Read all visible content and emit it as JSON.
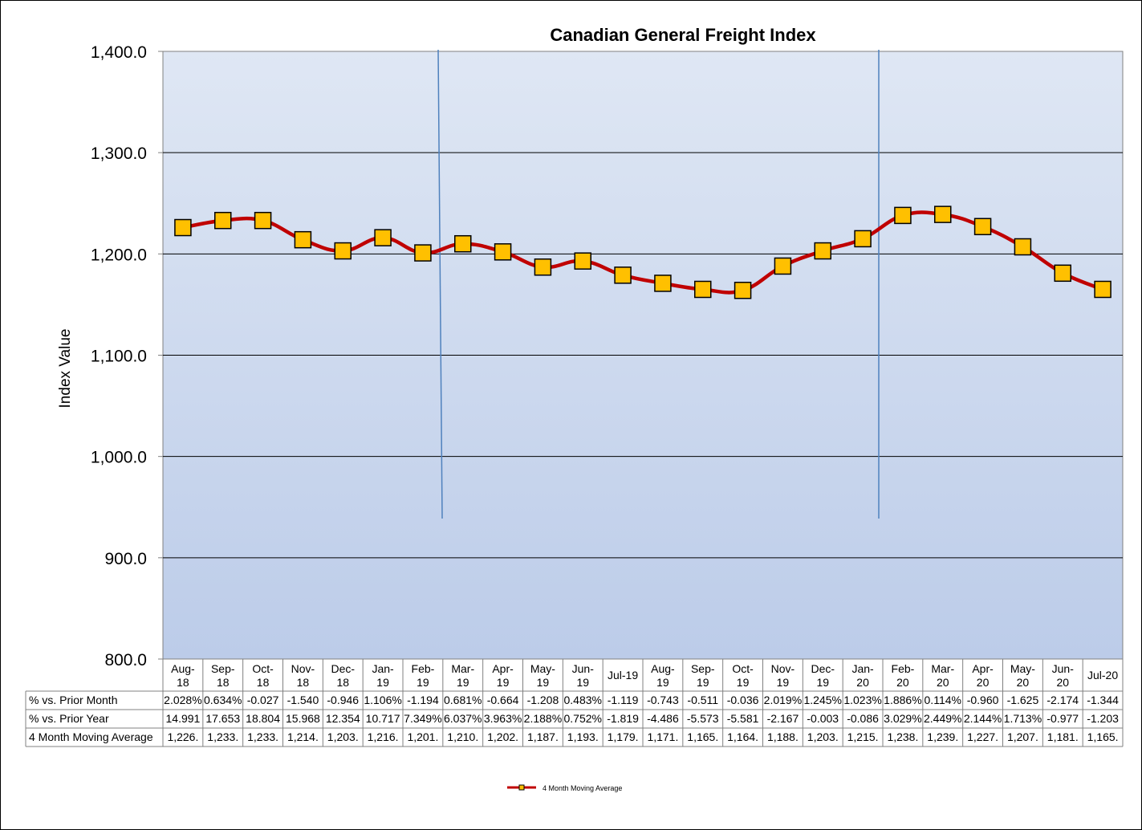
{
  "chart_data": {
    "type": "line",
    "title": "Canadian General Freight Index",
    "ylabel": "Index Value",
    "xlabel": "",
    "ylim": [
      800,
      1400
    ],
    "yticks": [
      "1,400.0",
      "1,300.0",
      "1,200.0",
      "1,100.0",
      "1,000.0",
      "900.0",
      "800.0"
    ],
    "ytick_values": [
      1400,
      1300,
      1200,
      1100,
      1000,
      900,
      800
    ],
    "grid": true,
    "legend_position": "bottom",
    "categories": [
      [
        "Aug-",
        "18"
      ],
      [
        "Sep-",
        "18"
      ],
      [
        "Oct-",
        "18"
      ],
      [
        "Nov-",
        "18"
      ],
      [
        "Dec-",
        "18"
      ],
      [
        "Jan-",
        "19"
      ],
      [
        "Feb-",
        "19"
      ],
      [
        "Mar-",
        "19"
      ],
      [
        "Apr-",
        "19"
      ],
      [
        "May-",
        "19"
      ],
      [
        "Jun-",
        "19"
      ],
      [
        "Jul-19"
      ],
      [
        "Aug-",
        "19"
      ],
      [
        "Sep-",
        "19"
      ],
      [
        "Oct-",
        "19"
      ],
      [
        "Nov-",
        "19"
      ],
      [
        "Dec-",
        "19"
      ],
      [
        "Jan-",
        "20"
      ],
      [
        "Feb-",
        "20"
      ],
      [
        "Mar-",
        "20"
      ],
      [
        "Apr-",
        "20"
      ],
      [
        "May-",
        "20"
      ],
      [
        "Jun-",
        "20"
      ],
      [
        "Jul-20"
      ]
    ],
    "series": [
      {
        "name": "4 Month Moving Average",
        "color": "#c00000",
        "marker_color": "#ffc000",
        "values": [
          1226,
          1233,
          1233,
          1214,
          1203,
          1216,
          1201,
          1210,
          1202,
          1187,
          1193,
          1179,
          1171,
          1165,
          1164,
          1188,
          1203,
          1215,
          1238,
          1239,
          1227,
          1207,
          1181,
          1165
        ]
      }
    ],
    "reference_lines": [
      {
        "between": [
          "Feb-19",
          "Mar-19"
        ],
        "color": "#4f81bd"
      },
      {
        "between": [
          "Jan-20",
          "Feb-20"
        ],
        "color": "#4f81bd"
      }
    ],
    "table": {
      "rows": [
        {
          "label": "% vs. Prior Month",
          "cells": [
            "2.028%",
            "0.634%",
            "-0.027",
            "-1.540",
            "-0.946",
            "1.106%",
            "-1.194",
            "0.681%",
            "-0.664",
            "-1.208",
            "0.483%",
            "-1.119",
            "-0.743",
            "-0.511",
            "-0.036",
            "2.019%",
            "1.245%",
            "1.023%",
            "1.886%",
            "0.114%",
            "-0.960",
            "-1.625",
            "-2.174",
            "-1.344"
          ]
        },
        {
          "label": "% vs. Prior Year",
          "cells": [
            "14.991",
            "17.653",
            "18.804",
            "15.968",
            "12.354",
            "10.717",
            "7.349%",
            "6.037%",
            "3.963%",
            "2.188%",
            "0.752%",
            "-1.819",
            "-4.486",
            "-5.573",
            "-5.581",
            "-2.167",
            "-0.003",
            "-0.086",
            "3.029%",
            "2.449%",
            "2.144%",
            "1.713%",
            "-0.977",
            "-1.203"
          ]
        },
        {
          "label": "4 Month Moving Average",
          "legend_key": true,
          "cells": [
            "1,226.",
            "1,233.",
            "1,233.",
            "1,214.",
            "1,203.",
            "1,216.",
            "1,201.",
            "1,210.",
            "1,202.",
            "1,187.",
            "1,193.",
            "1,179.",
            "1,171.",
            "1,165.",
            "1,164.",
            "1,188.",
            "1,203.",
            "1,215.",
            "1,238.",
            "1,239.",
            "1,227.",
            "1,207.",
            "1,181.",
            "1,165."
          ]
        }
      ]
    },
    "colors": {
      "plot_top": "#dfe7f4",
      "plot_bottom": "#bccce9",
      "gridline": "#000000",
      "line": "#c00000",
      "marker": "#ffc000",
      "marker_border": "#000000",
      "reference_line": "#4f81bd"
    }
  }
}
